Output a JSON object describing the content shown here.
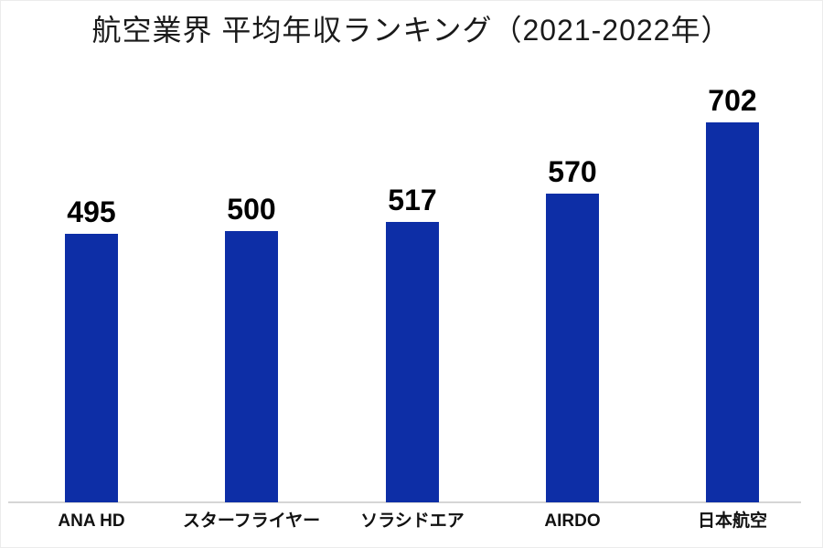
{
  "title": "航空業界 平均年収ランキング（2021-2022年）",
  "colors": {
    "bar": "#0d2ea6",
    "axis_line": "#d6d6d6",
    "text": "#000000",
    "background": "#ffffff"
  },
  "chart_data": {
    "type": "bar",
    "title": "航空業界 平均年収ランキング（2021-2022年）",
    "categories": [
      "ANA HD",
      "スターフライヤー",
      "ソラシドエア",
      "AIRDO",
      "日本航空"
    ],
    "values": [
      495,
      500,
      517,
      570,
      702
    ],
    "data_labels": [
      "495",
      "500",
      "517",
      "570",
      "702"
    ],
    "xlabel": "",
    "ylabel": "",
    "ylim": [
      0,
      750
    ],
    "grid": false,
    "legend_position": "none",
    "y_axis_visible": false,
    "x_axis_line": true
  }
}
